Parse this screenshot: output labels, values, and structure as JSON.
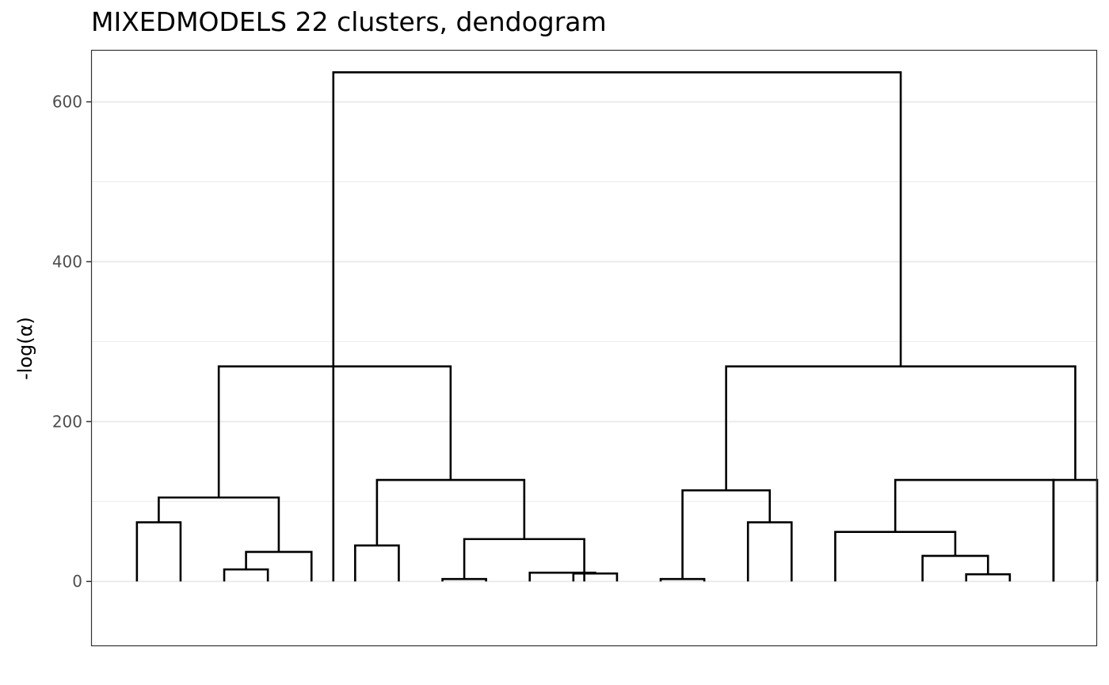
{
  "chart_data": {
    "type": "dendrogram",
    "title": "MIXEDMODELS 22 clusters, dendogram",
    "xlabel": "",
    "ylabel": "-log(α)",
    "ylim": [
      -80,
      665
    ],
    "y_ticks": [
      0,
      200,
      400,
      600
    ],
    "y_minor_ticks": [
      100,
      300,
      500
    ],
    "grid": true,
    "leaves": 22,
    "merges": [
      {
        "left": 1,
        "right": 2,
        "height": 74
      },
      {
        "left": 3,
        "right": 4,
        "height": 15
      },
      {
        "left": 3.5,
        "right": 5,
        "height": 37
      },
      {
        "left": 1.5,
        "right": 4.25,
        "height": 105
      },
      {
        "left": 6,
        "right": 7,
        "height": 45
      },
      {
        "left": 8,
        "right": 9,
        "height": 3
      },
      {
        "left": 10,
        "right": 11.5,
        "height": 11
      },
      {
        "left": 11,
        "right": 12,
        "height": 10
      },
      {
        "left": 8.5,
        "right": 11.25,
        "height": 53
      },
      {
        "left": 6.5,
        "right": 9.875,
        "height": 127
      },
      {
        "left": 2.875,
        "right": 8.1875,
        "height": 269
      },
      {
        "left": 13,
        "right": 14,
        "height": 3
      },
      {
        "left": 15,
        "right": 16,
        "height": 74
      },
      {
        "left": 13.5,
        "right": 15.5,
        "height": 114
      },
      {
        "left": 20,
        "right": 21,
        "height": 9
      },
      {
        "left": 19,
        "right": 20.5,
        "height": 32
      },
      {
        "left": 17,
        "right": 19.75,
        "height": 62
      },
      {
        "left": 18.375,
        "right": 22,
        "height": 127
      },
      {
        "left": 22,
        "right": 23,
        "height": 127
      },
      {
        "left": 14.5,
        "right": 22.5,
        "height": 269
      },
      {
        "left": 5.5,
        "right": 18.5,
        "height": 637
      }
    ]
  }
}
